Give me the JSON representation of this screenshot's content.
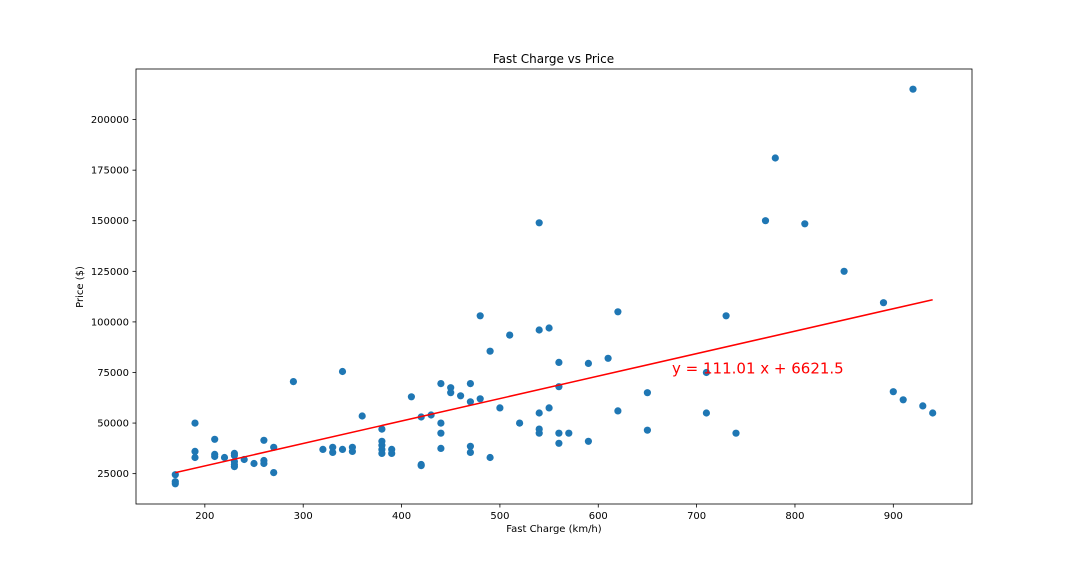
{
  "chart_data": {
    "type": "scatter",
    "title": "Fast Charge vs Price",
    "xlabel": "Fast Charge (km/h)",
    "ylabel": "Price ($)",
    "xlim": [
      130,
      980
    ],
    "ylim": [
      10000,
      225000
    ],
    "xticks": [
      200,
      300,
      400,
      500,
      600,
      700,
      800,
      900
    ],
    "yticks": [
      25000,
      50000,
      75000,
      100000,
      125000,
      150000,
      175000,
      200000
    ],
    "marker_color": "#1f77b4",
    "regression": {
      "slope": 111.01,
      "intercept": 6621.5,
      "x_range": [
        170,
        940
      ],
      "color": "#ff0000"
    },
    "annotation": {
      "text": "y = 111.01 x + 6621.5",
      "x": 675,
      "y": 74500,
      "color": "#ff0000"
    },
    "points": [
      [
        170,
        24500
      ],
      [
        170,
        21000
      ],
      [
        170,
        20000
      ],
      [
        190,
        50000
      ],
      [
        190,
        36000
      ],
      [
        190,
        33000
      ],
      [
        210,
        42000
      ],
      [
        210,
        34500
      ],
      [
        210,
        33500
      ],
      [
        220,
        33000
      ],
      [
        230,
        35000
      ],
      [
        230,
        34000
      ],
      [
        230,
        31000
      ],
      [
        230,
        29500
      ],
      [
        230,
        28500
      ],
      [
        240,
        32000
      ],
      [
        250,
        30000
      ],
      [
        260,
        41500
      ],
      [
        260,
        31500
      ],
      [
        260,
        30000
      ],
      [
        270,
        38000
      ],
      [
        270,
        25500
      ],
      [
        290,
        70500
      ],
      [
        320,
        37000
      ],
      [
        330,
        38000
      ],
      [
        330,
        35500
      ],
      [
        340,
        75500
      ],
      [
        340,
        37000
      ],
      [
        350,
        38000
      ],
      [
        350,
        36000
      ],
      [
        360,
        53500
      ],
      [
        380,
        47000
      ],
      [
        380,
        41000
      ],
      [
        380,
        39000
      ],
      [
        380,
        37000
      ],
      [
        380,
        35000
      ],
      [
        390,
        37000
      ],
      [
        390,
        35000
      ],
      [
        410,
        63000
      ],
      [
        420,
        53000
      ],
      [
        420,
        29500
      ],
      [
        420,
        29000
      ],
      [
        430,
        54000
      ],
      [
        440,
        69500
      ],
      [
        440,
        50000
      ],
      [
        440,
        45000
      ],
      [
        440,
        37500
      ],
      [
        450,
        67500
      ],
      [
        450,
        65000
      ],
      [
        460,
        63500
      ],
      [
        470,
        69500
      ],
      [
        470,
        60500
      ],
      [
        470,
        38500
      ],
      [
        470,
        35500
      ],
      [
        480,
        103000
      ],
      [
        480,
        62000
      ],
      [
        490,
        85500
      ],
      [
        490,
        33000
      ],
      [
        500,
        57500
      ],
      [
        510,
        93500
      ],
      [
        520,
        50000
      ],
      [
        540,
        149000
      ],
      [
        540,
        96000
      ],
      [
        540,
        55000
      ],
      [
        540,
        47000
      ],
      [
        540,
        45000
      ],
      [
        550,
        97000
      ],
      [
        550,
        57500
      ],
      [
        560,
        80000
      ],
      [
        560,
        68000
      ],
      [
        560,
        45000
      ],
      [
        560,
        40000
      ],
      [
        570,
        45000
      ],
      [
        590,
        79500
      ],
      [
        590,
        41000
      ],
      [
        610,
        82000
      ],
      [
        620,
        105000
      ],
      [
        620,
        56000
      ],
      [
        650,
        65000
      ],
      [
        650,
        46500
      ],
      [
        710,
        75000
      ],
      [
        710,
        55000
      ],
      [
        730,
        103000
      ],
      [
        740,
        45000
      ],
      [
        770,
        150000
      ],
      [
        780,
        181000
      ],
      [
        810,
        148500
      ],
      [
        850,
        125000
      ],
      [
        890,
        109500
      ],
      [
        900,
        65500
      ],
      [
        910,
        61500
      ],
      [
        920,
        215000
      ],
      [
        930,
        58500
      ],
      [
        940,
        55000
      ]
    ]
  }
}
